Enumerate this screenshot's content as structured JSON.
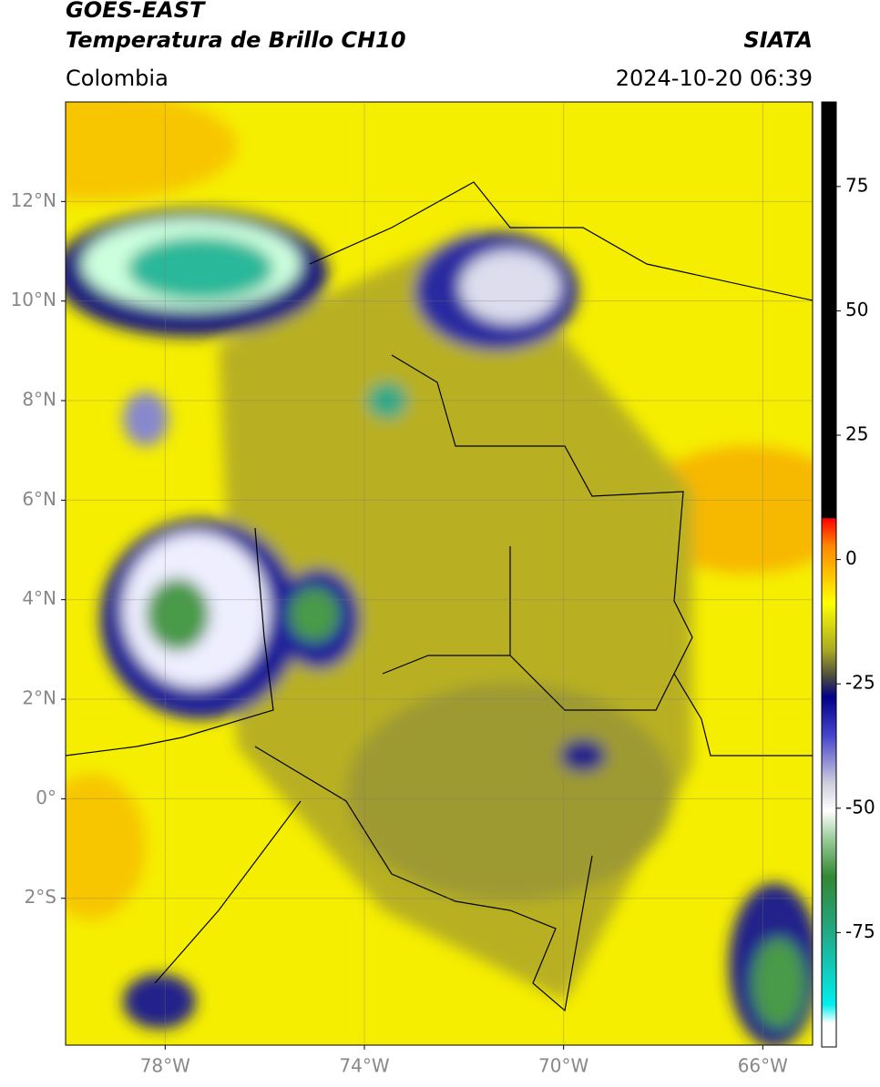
{
  "header": {
    "title": "GOES-EAST",
    "subtitle": "Temperatura de Brillo CH10",
    "source": "SIATA",
    "region": "Colombia",
    "datetime": "2024-10-20 06:39"
  },
  "map": {
    "xlim": [
      -80,
      -65
    ],
    "ylim": [
      -4.95,
      14
    ],
    "xticks": [
      {
        "value": -78,
        "label": "78°W"
      },
      {
        "value": -74,
        "label": "74°W"
      },
      {
        "value": -70,
        "label": "70°W"
      },
      {
        "value": -66,
        "label": "66°W"
      }
    ],
    "yticks": [
      {
        "value": 12,
        "label": "12°N"
      },
      {
        "value": 10,
        "label": "10°N"
      },
      {
        "value": 8,
        "label": "8°N"
      },
      {
        "value": 6,
        "label": "6°N"
      },
      {
        "value": 4,
        "label": "4°N"
      },
      {
        "value": 2,
        "label": "2°N"
      },
      {
        "value": 0,
        "label": "0°"
      },
      {
        "value": -2,
        "label": "2°S"
      }
    ],
    "grid": true
  },
  "colorbar": {
    "ylim": [
      -98,
      92
    ],
    "yticks": [
      75,
      50,
      25,
      0,
      -25,
      -50,
      -75
    ]
  }
}
